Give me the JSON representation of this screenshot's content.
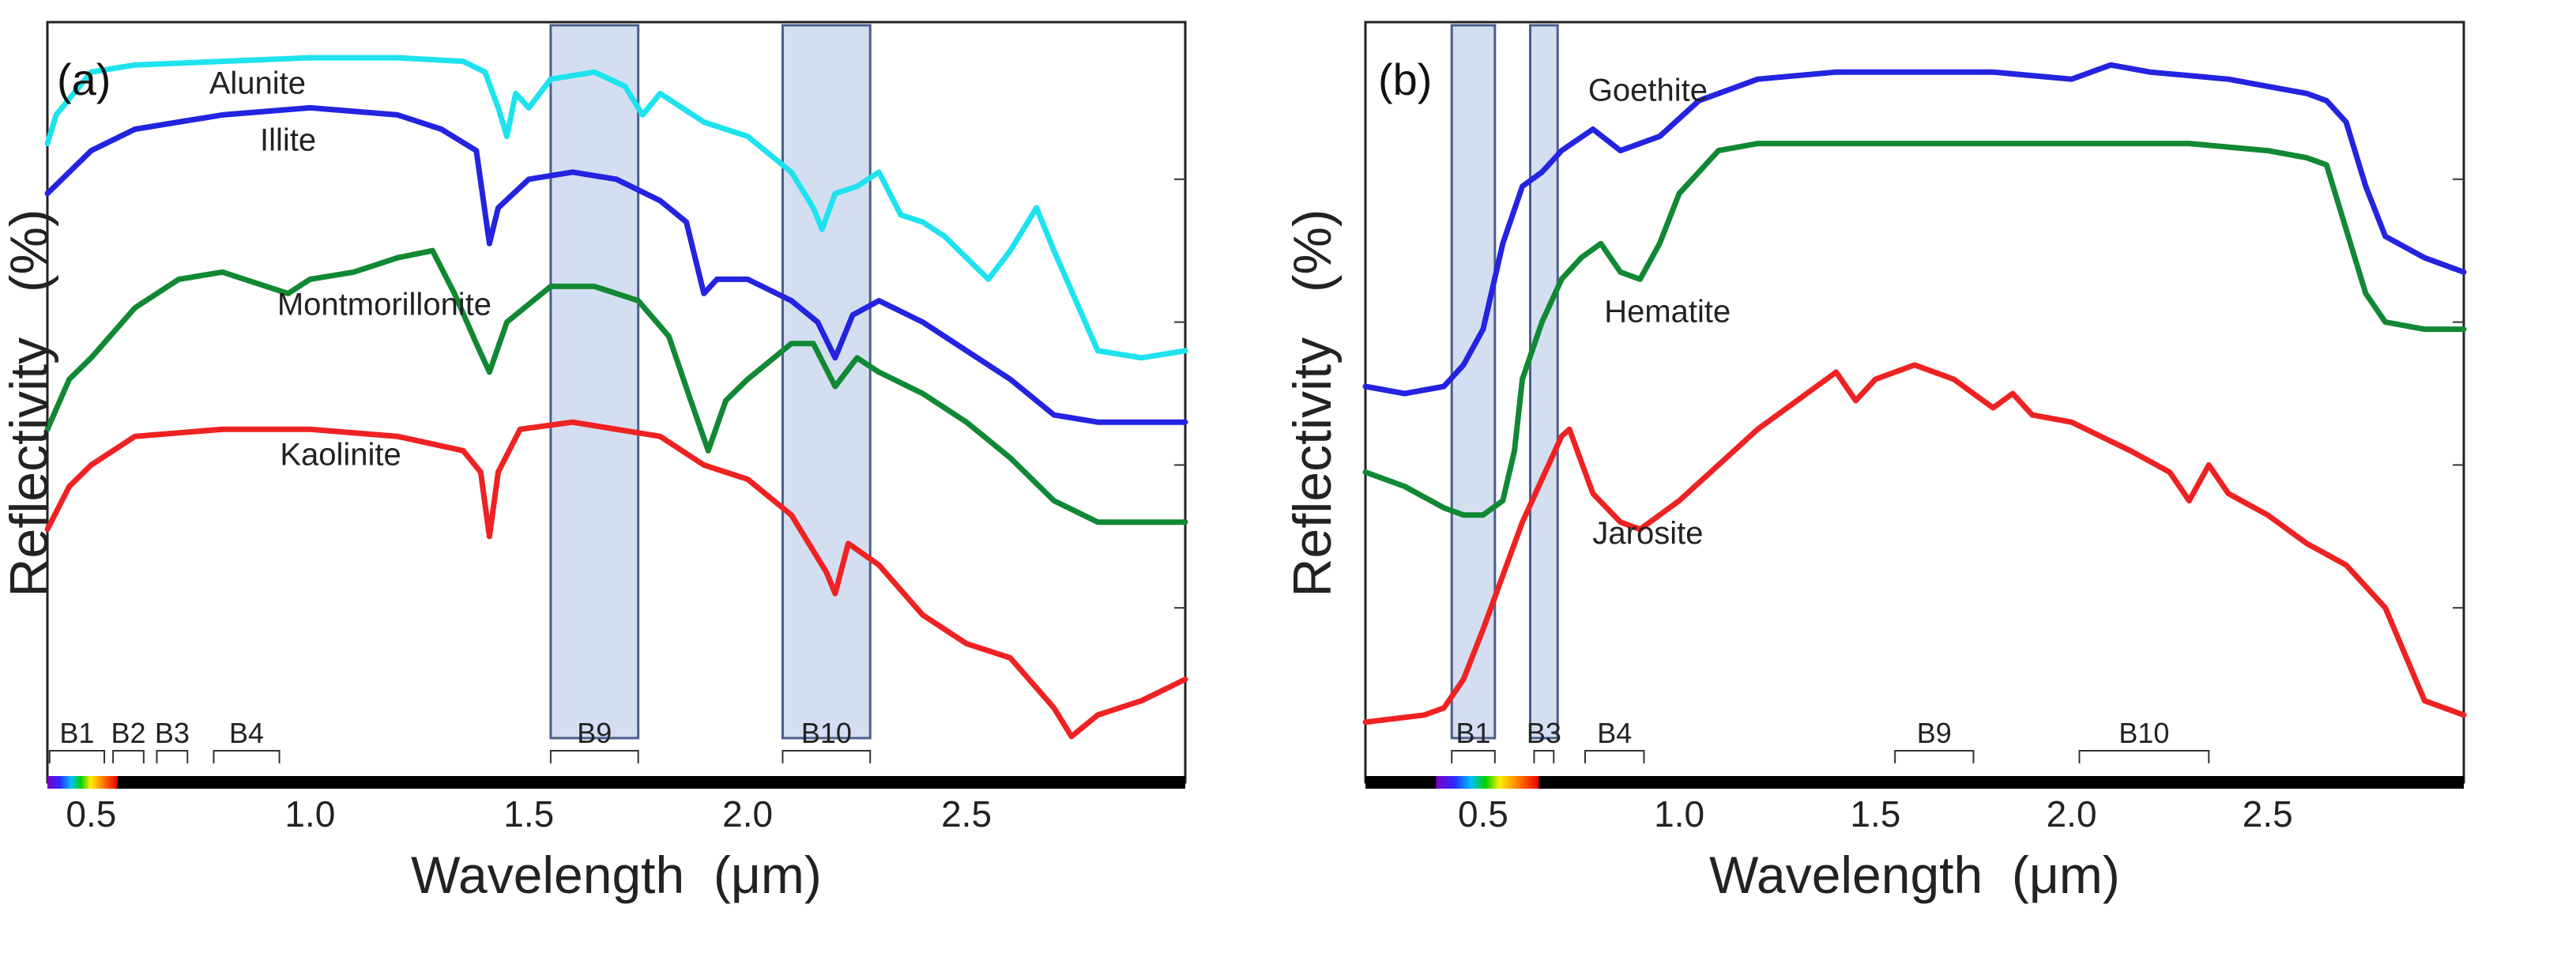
{
  "chart_data": [
    {
      "type": "line",
      "panel_label": "(a)",
      "xlabel": "Wavelength  (μm)",
      "ylabel": "Reflectivity   (%)",
      "xlim": [
        0.4,
        3.0
      ],
      "ylim": [
        0,
        100
      ],
      "xticks": [
        0.5,
        1.0,
        1.5,
        2.0,
        2.5
      ],
      "xtick_labels": [
        "0.5",
        "1.0",
        "1.5",
        "2.0",
        "2.5"
      ],
      "yticks": [
        20,
        40,
        60,
        80
      ],
      "highlight_bands": [
        {
          "name": "B9",
          "x0": 1.55,
          "x1": 1.75
        },
        {
          "name": "B10",
          "x0": 2.08,
          "x1": 2.28
        }
      ],
      "sensor_bands": [
        {
          "name": "B1",
          "x0": 0.405,
          "x1": 0.53
        },
        {
          "name": "B2",
          "x0": 0.55,
          "x1": 0.62
        },
        {
          "name": "B3",
          "x0": 0.65,
          "x1": 0.72
        },
        {
          "name": "B4",
          "x0": 0.78,
          "x1": 0.93
        },
        {
          "name": "B9",
          "x0": 1.55,
          "x1": 1.75
        },
        {
          "name": "B10",
          "x0": 2.08,
          "x1": 2.28
        }
      ],
      "series": [
        {
          "name": "Alunite",
          "label_x": 0.88,
          "label_y": 92,
          "color": "#1ee3ee",
          "x": [
            0.4,
            0.42,
            0.5,
            0.6,
            0.8,
            1.0,
            1.2,
            1.35,
            1.4,
            1.43,
            1.45,
            1.47,
            1.5,
            1.55,
            1.65,
            1.72,
            1.76,
            1.8,
            1.9,
            2.0,
            2.1,
            2.15,
            2.17,
            2.2,
            2.25,
            2.3,
            2.35,
            2.4,
            2.45,
            2.5,
            2.55,
            2.6,
            2.63,
            2.66,
            2.7,
            2.8,
            2.9,
            3.0
          ],
          "y": [
            85,
            89,
            95,
            96,
            96.5,
            97,
            97,
            96.5,
            95,
            90,
            86,
            92,
            90,
            94,
            95,
            93,
            89,
            92,
            88,
            86,
            81,
            76,
            73,
            78,
            79,
            81,
            75,
            74,
            72,
            69,
            66,
            70,
            73,
            76,
            70,
            56,
            55,
            56
          ]
        },
        {
          "name": "Illite",
          "label_x": 0.95,
          "label_y": 84,
          "color": "#2323e0",
          "x": [
            0.4,
            0.45,
            0.5,
            0.6,
            0.8,
            1.0,
            1.2,
            1.3,
            1.38,
            1.41,
            1.43,
            1.5,
            1.6,
            1.7,
            1.8,
            1.86,
            1.9,
            1.93,
            2.0,
            2.1,
            2.16,
            2.2,
            2.24,
            2.3,
            2.4,
            2.5,
            2.6,
            2.7,
            2.8,
            2.9,
            3.0
          ],
          "y": [
            78,
            81,
            84,
            87,
            89,
            90,
            89,
            87,
            84,
            71,
            76,
            80,
            81,
            80,
            77,
            74,
            64,
            66,
            66,
            63,
            60,
            55,
            61,
            63,
            60,
            56,
            52,
            47,
            46,
            46,
            46
          ]
        },
        {
          "name": "Montmorillonite",
          "label_x": 1.17,
          "label_y": 61,
          "color": "#118833",
          "x": [
            0.4,
            0.45,
            0.5,
            0.6,
            0.7,
            0.8,
            0.95,
            1.0,
            1.1,
            1.2,
            1.28,
            1.33,
            1.38,
            1.41,
            1.45,
            1.55,
            1.65,
            1.75,
            1.82,
            1.87,
            1.91,
            1.95,
            2.0,
            2.1,
            2.15,
            2.2,
            2.25,
            2.3,
            2.4,
            2.5,
            2.6,
            2.7,
            2.8,
            2.9,
            3.0
          ],
          "y": [
            45,
            52,
            55,
            62,
            66,
            67,
            64,
            66,
            67,
            69,
            70,
            64,
            57,
            53,
            60,
            65,
            65,
            63,
            58,
            49,
            42,
            49,
            52,
            57,
            57,
            51,
            55,
            53,
            50,
            46,
            41,
            35,
            32,
            32,
            32
          ]
        },
        {
          "name": "Kaolinite",
          "label_x": 1.07,
          "label_y": 40,
          "color": "#ee2222",
          "x": [
            0.4,
            0.45,
            0.5,
            0.6,
            0.8,
            1.0,
            1.2,
            1.35,
            1.39,
            1.41,
            1.43,
            1.48,
            1.6,
            1.8,
            1.9,
            2.0,
            2.1,
            2.15,
            2.18,
            2.2,
            2.23,
            2.3,
            2.4,
            2.5,
            2.6,
            2.7,
            2.74,
            2.8,
            2.9,
            3.0
          ],
          "y": [
            31,
            37,
            40,
            44,
            45,
            45,
            44,
            42,
            39,
            30,
            39,
            45,
            46,
            44,
            40,
            38,
            33,
            28,
            25,
            22,
            29,
            26,
            19,
            15,
            13,
            6,
            2,
            5,
            7,
            10
          ]
        }
      ]
    },
    {
      "type": "line",
      "panel_label": "(b)",
      "xlabel": "Wavelength  (μm)",
      "ylabel": "Reflectivity   (%)",
      "xlim": [
        0.2,
        3.0
      ],
      "ylim": [
        0,
        100
      ],
      "xticks": [
        0.5,
        1.0,
        1.5,
        2.0,
        2.5
      ],
      "xtick_labels": [
        "0.5",
        "1.0",
        "1.5",
        "2.0",
        "2.5"
      ],
      "yticks": [
        20,
        40,
        60,
        80
      ],
      "highlight_bands": [
        {
          "name": "B1",
          "x0": 0.42,
          "x1": 0.53
        },
        {
          "name": "B3",
          "x0": 0.62,
          "x1": 0.69
        }
      ],
      "sensor_bands": [
        {
          "name": "B1",
          "x0": 0.42,
          "x1": 0.53
        },
        {
          "name": "B3",
          "x0": 0.63,
          "x1": 0.68
        },
        {
          "name": "B4",
          "x0": 0.76,
          "x1": 0.91
        },
        {
          "name": "B9",
          "x0": 1.55,
          "x1": 1.75
        },
        {
          "name": "B10",
          "x0": 2.02,
          "x1": 2.35
        }
      ],
      "series": [
        {
          "name": "Goethite",
          "label_x": 0.92,
          "label_y": 91,
          "color": "#2323e0",
          "x": [
            0.2,
            0.3,
            0.4,
            0.45,
            0.5,
            0.55,
            0.6,
            0.65,
            0.7,
            0.78,
            0.85,
            0.95,
            1.05,
            1.2,
            1.4,
            1.6,
            1.8,
            2.0,
            2.1,
            2.2,
            2.4,
            2.5,
            2.6,
            2.65,
            2.7,
            2.75,
            2.8,
            2.9,
            3.0
          ],
          "y": [
            51,
            50,
            51,
            54,
            59,
            71,
            79,
            81,
            84,
            87,
            84,
            86,
            91,
            94,
            95,
            95,
            95,
            94,
            96,
            95,
            94,
            93,
            92,
            91,
            88,
            79,
            72,
            69,
            67
          ]
        },
        {
          "name": "Hematite",
          "label_x": 0.97,
          "label_y": 60,
          "color": "#118833",
          "x": [
            0.2,
            0.3,
            0.4,
            0.45,
            0.5,
            0.55,
            0.58,
            0.6,
            0.65,
            0.7,
            0.75,
            0.8,
            0.85,
            0.9,
            0.95,
            1.0,
            1.1,
            1.2,
            1.5,
            1.8,
            2.0,
            2.3,
            2.5,
            2.6,
            2.65,
            2.7,
            2.75,
            2.8,
            2.9,
            3.0
          ],
          "y": [
            39,
            37,
            34,
            33,
            33,
            35,
            42,
            52,
            60,
            66,
            69,
            71,
            67,
            66,
            71,
            78,
            84,
            85,
            85,
            85,
            85,
            85,
            84,
            83,
            82,
            73,
            64,
            60,
            59,
            59
          ]
        },
        {
          "name": "Jarosite",
          "label_x": 0.92,
          "label_y": 29,
          "color": "#ee2222",
          "x": [
            0.2,
            0.35,
            0.4,
            0.45,
            0.5,
            0.6,
            0.7,
            0.72,
            0.78,
            0.85,
            0.9,
            1.0,
            1.2,
            1.4,
            1.45,
            1.5,
            1.6,
            1.7,
            1.8,
            1.85,
            1.9,
            2.0,
            2.15,
            2.25,
            2.3,
            2.35,
            2.4,
            2.5,
            2.6,
            2.7,
            2.8,
            2.9,
            3.0
          ],
          "y": [
            4,
            5,
            6,
            10,
            17,
            32,
            44,
            45,
            36,
            32,
            31,
            35,
            45,
            53,
            49,
            52,
            54,
            52,
            48,
            50,
            47,
            46,
            42,
            39,
            35,
            40,
            36,
            33,
            29,
            26,
            20,
            7,
            5
          ]
        }
      ]
    }
  ]
}
